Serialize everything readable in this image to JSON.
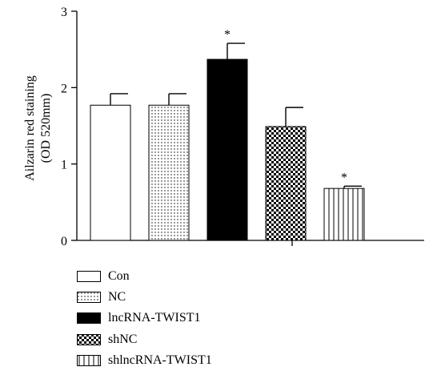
{
  "chart_data": {
    "type": "bar",
    "title": "",
    "ylabel": "Ailzarin red staining\n(OD 520mm)",
    "xlabel": "",
    "ylim": [
      0,
      3
    ],
    "yticks": [
      0,
      1,
      2,
      3
    ],
    "grid": false,
    "legend_position": "bottom-left",
    "categories": [
      "Con",
      "NC",
      "lncRNA-TWIST1",
      "shNC",
      "shlncRNA-TWIST1"
    ],
    "values": [
      1.77,
      1.77,
      2.37,
      1.49,
      0.68
    ],
    "errors": [
      0.15,
      0.15,
      0.21,
      0.25,
      0.03
    ],
    "significance": [
      "",
      "",
      "*",
      "",
      "*"
    ],
    "patterns": [
      "solid-white",
      "dots",
      "solid-black",
      "checker",
      "vertical-lines"
    ]
  }
}
